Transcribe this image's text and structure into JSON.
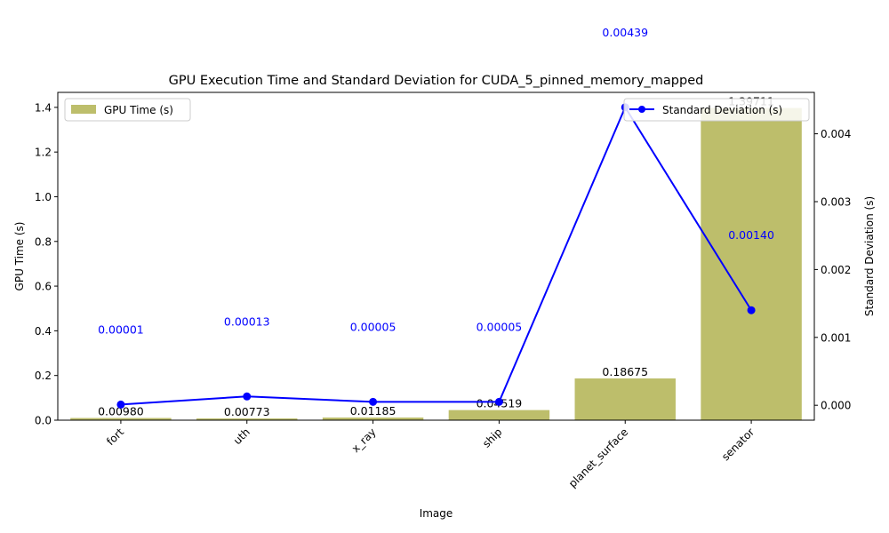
{
  "chart_data": {
    "type": "bar",
    "title": "GPU Execution Time and Standard Deviation for CUDA_5_pinned_memory_mapped",
    "xlabel": "Image",
    "ylabel_left": "GPU Time (s)",
    "ylabel_right": "Standard Deviation (s)",
    "categories": [
      "fort",
      "uth",
      "x_ray",
      "ship",
      "planet_surface",
      "senator"
    ],
    "series": [
      {
        "name": "GPU Time (s)",
        "kind": "bar",
        "axis": "left",
        "color": "#bdbe6b",
        "values": [
          0.0098,
          0.00773,
          0.01185,
          0.04519,
          0.18675,
          1.39711
        ],
        "labels": [
          "0.00980",
          "0.00773",
          "0.01185",
          "0.04519",
          "0.18675",
          "1.39711"
        ]
      },
      {
        "name": "Standard Deviation (s)",
        "kind": "line",
        "axis": "right",
        "color": "#0000ff",
        "values": [
          1e-05,
          0.00013,
          5e-05,
          5e-05,
          0.00439,
          0.0014
        ],
        "labels": [
          "0.00001",
          "0.00013",
          "0.00005",
          "0.00005",
          "0.00439",
          "0.00140"
        ]
      }
    ],
    "ylim_left": [
      0,
      1.467
    ],
    "ylim_right": [
      -0.00022,
      0.00461
    ],
    "yticks_left": [
      "0.0",
      "0.2",
      "0.4",
      "0.6",
      "0.8",
      "1.0",
      "1.2",
      "1.4"
    ],
    "yticks_left_values": [
      0,
      0.2,
      0.4,
      0.6,
      0.8,
      1.0,
      1.2,
      1.4
    ],
    "yticks_right": [
      "0.000",
      "0.001",
      "0.002",
      "0.003",
      "0.004"
    ],
    "yticks_right_values": [
      0,
      0.001,
      0.002,
      0.003,
      0.004
    ],
    "legend_left": "top-left",
    "legend_right": "top-right",
    "grid": false
  }
}
